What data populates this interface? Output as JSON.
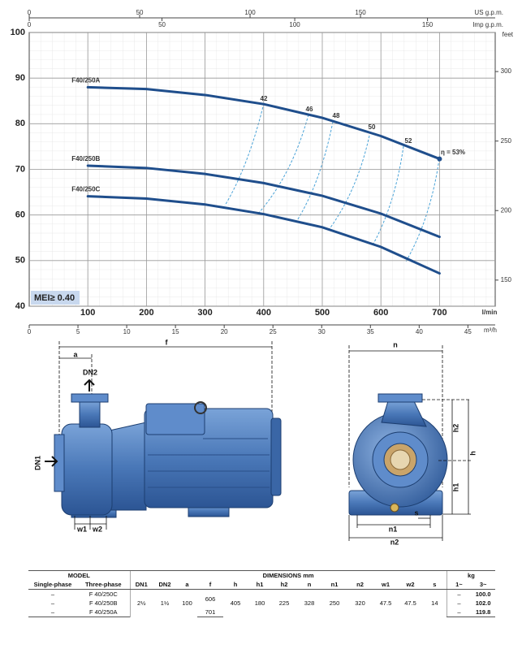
{
  "chart_data": {
    "type": "line",
    "x": [
      100,
      200,
      300,
      400,
      500,
      600,
      700
    ],
    "xlim": [
      0,
      795
    ],
    "xticks": [
      100,
      200,
      300,
      400,
      500,
      600,
      700
    ],
    "xlabel": "l/min",
    "ylim": [
      40,
      100
    ],
    "yticks": [
      40,
      50,
      60,
      70,
      80,
      90,
      100
    ],
    "grid": true,
    "series": [
      {
        "name": "F40/250A",
        "color": "#1f4e8c",
        "values": [
          88,
          87.6,
          86.3,
          84.3,
          81.3,
          77.3,
          72.3
        ]
      },
      {
        "name": "F40/250B",
        "color": "#1f4e8c",
        "values": [
          70.8,
          70.3,
          69,
          67,
          64.2,
          60.3,
          55.2
        ]
      },
      {
        "name": "F40/250C",
        "color": "#1f4e8c",
        "values": [
          64.1,
          63.6,
          62.3,
          60.2,
          57.3,
          53,
          47.2
        ]
      }
    ],
    "annotations": [
      "42",
      "46",
      "48",
      "50",
      "52",
      "η = 53%"
    ],
    "badge": "MEI≥ 0.40",
    "us_gpm": {
      "label": "US g.p.m.",
      "lim": [
        0,
        211
      ],
      "ticks": [
        0,
        50,
        100,
        150
      ]
    },
    "imp_gpm": {
      "label": "Imp g.p.m.",
      "lim": [
        0,
        175.5
      ],
      "ticks": [
        0,
        50,
        100,
        150
      ]
    },
    "m3h": {
      "label": "m³/h",
      "lim": [
        0,
        47.8
      ],
      "ticks": [
        0,
        5,
        10,
        15,
        20,
        25,
        30,
        35,
        40,
        45
      ]
    },
    "feet": {
      "label": "feet",
      "lim": [
        131.2,
        328.1
      ],
      "ticks": [
        150,
        200,
        250,
        300
      ]
    }
  },
  "drawing": {
    "labels": {
      "a": "a",
      "f": "f",
      "dn2": "DN2",
      "dn1": "DN1",
      "w1": "w1",
      "w2": "w2",
      "n": "n",
      "h2": "h2",
      "h": "h",
      "h1": "h1",
      "s": "s",
      "n1": "n1",
      "n2": "n2"
    }
  },
  "table": {
    "group_headers": [
      "MODEL",
      "DIMENSIONS mm",
      "kg"
    ],
    "columns": [
      "Single-phase",
      "Three-phase",
      "DN1",
      "DN2",
      "a",
      "f",
      "h",
      "h1",
      "h2",
      "n",
      "n1",
      "n2",
      "w1",
      "w2",
      "s",
      "1~",
      "3~"
    ],
    "rows": [
      [
        "–",
        "F 40/250C",
        "2½",
        "1½",
        "100",
        "606",
        "405",
        "180",
        "225",
        "328",
        "250",
        "320",
        "47.5",
        "47.5",
        "14",
        "–",
        "100.0"
      ],
      [
        "–",
        "F 40/250B",
        "–",
        "102.0"
      ],
      [
        "–",
        "F 40/250A",
        "701",
        "–",
        "119.8"
      ]
    ]
  }
}
